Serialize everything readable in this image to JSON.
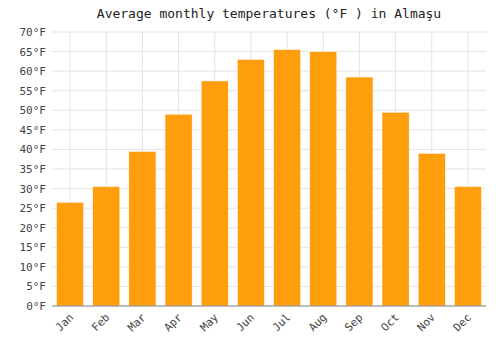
{
  "chart_data": {
    "type": "bar",
    "title": "Average monthly temperatures (°F ) in Almaşu",
    "categories": [
      "Jan",
      "Feb",
      "Mar",
      "Apr",
      "May",
      "Jun",
      "Jul",
      "Aug",
      "Sep",
      "Oct",
      "Nov",
      "Dec"
    ],
    "values": [
      26.5,
      30.5,
      39.5,
      49.0,
      57.5,
      63.0,
      65.5,
      65.0,
      58.5,
      49.5,
      39.0,
      30.5
    ],
    "color": "#ff9e0d",
    "ylim": [
      0,
      70
    ],
    "yticks": [
      {
        "value": 0,
        "label": "0°F"
      },
      {
        "value": 5,
        "label": "5°F"
      },
      {
        "value": 10,
        "label": "10°F"
      },
      {
        "value": 15,
        "label": "15°F"
      },
      {
        "value": 20,
        "label": "20°F"
      },
      {
        "value": 25,
        "label": "25°F"
      },
      {
        "value": 30,
        "label": "30°F"
      },
      {
        "value": 35,
        "label": "35°F"
      },
      {
        "value": 40,
        "label": "40°F"
      },
      {
        "value": 45,
        "label": "45°F"
      },
      {
        "value": 50,
        "label": "50°F"
      },
      {
        "value": 55,
        "label": "55°F"
      },
      {
        "value": 60,
        "label": "60°F"
      },
      {
        "value": 65,
        "label": "65°F"
      },
      {
        "value": 70,
        "label": "70°F"
      }
    ],
    "grid": true
  }
}
